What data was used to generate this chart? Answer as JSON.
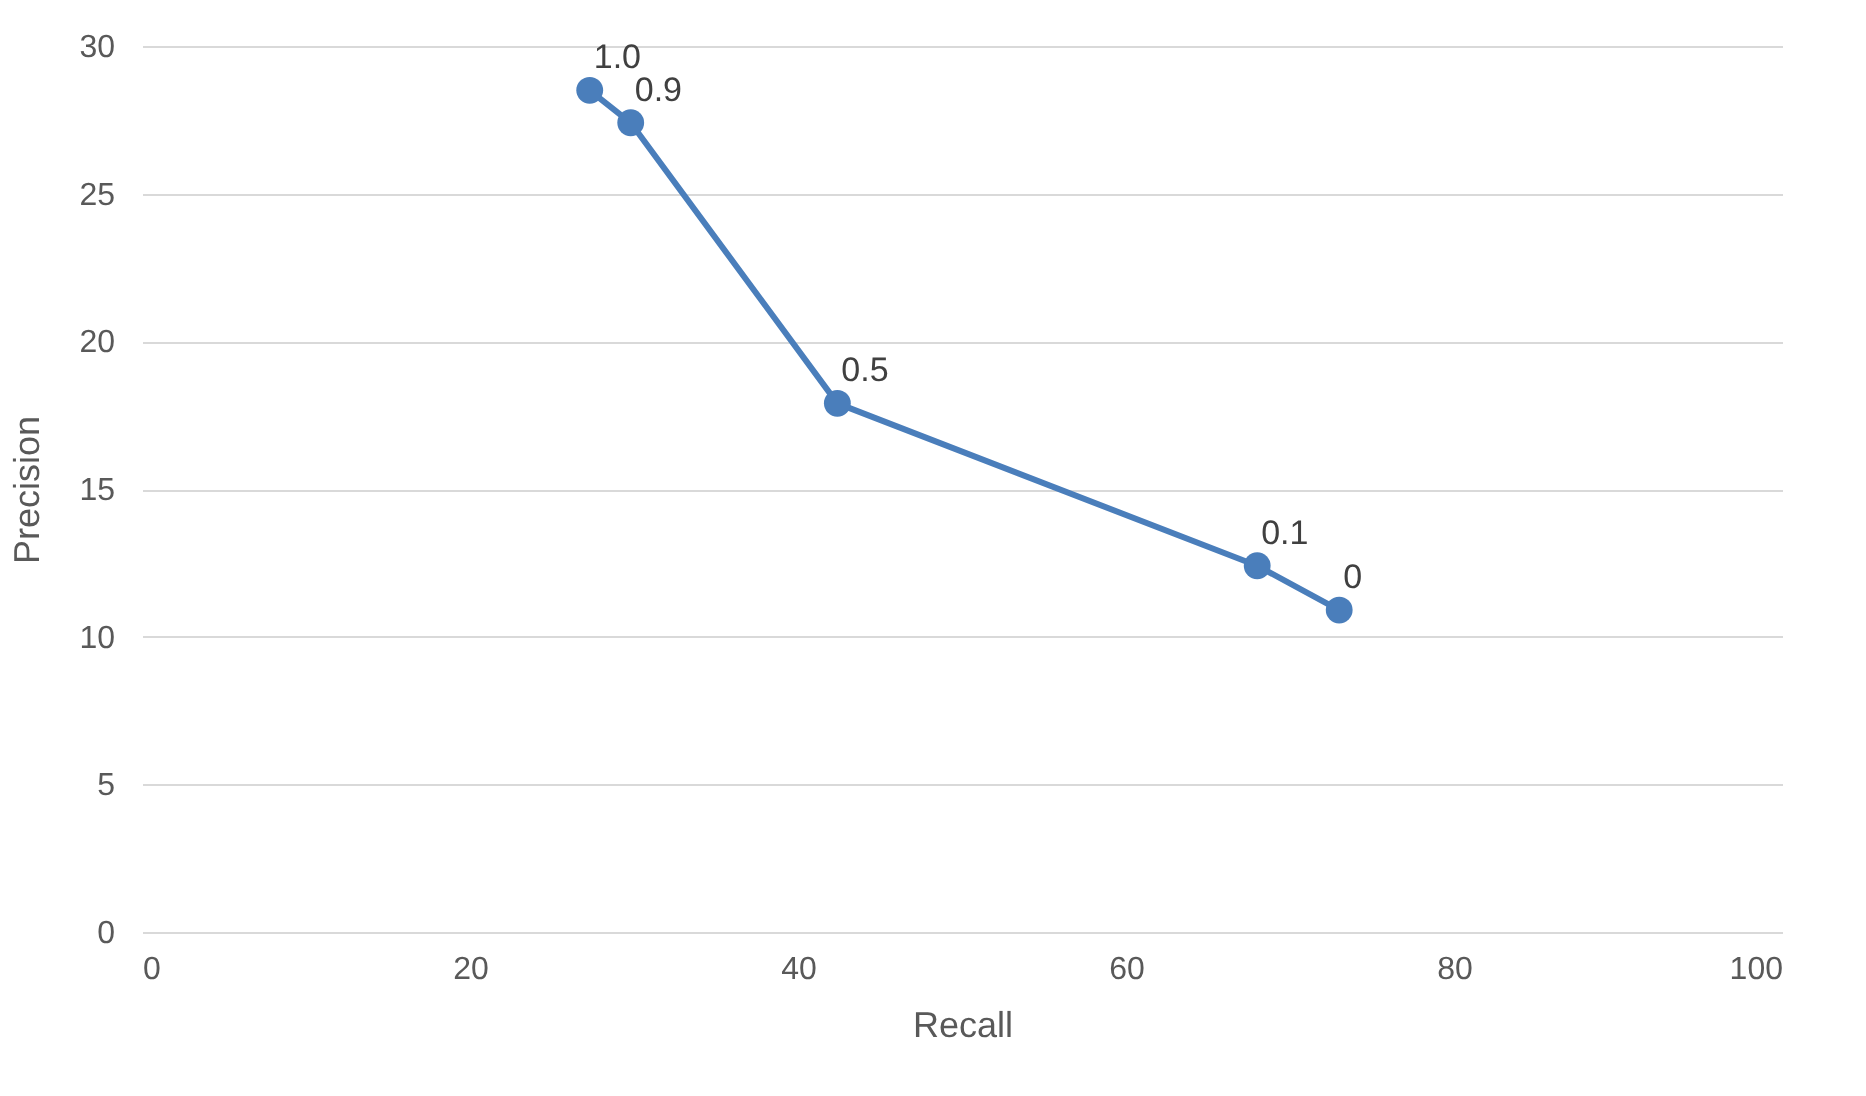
{
  "chart_data": {
    "type": "line",
    "xlabel": "Recall",
    "ylabel": "Precision",
    "x": [
      27.3,
      29.8,
      42.4,
      68.0,
      73.0
    ],
    "series": [
      {
        "color": "#4a7ebb",
        "values": [
          28.5,
          27.4,
          17.9,
          12.4,
          10.9
        ]
      }
    ],
    "xlim": [
      0,
      100
    ],
    "xticks": [
      0,
      20,
      40,
      60,
      80,
      100
    ],
    "ylim": [
      0,
      30
    ],
    "yticks": [
      0,
      5,
      10,
      15,
      20,
      25,
      30
    ],
    "grid": "y",
    "marker": "circle",
    "line_style": "solid",
    "annotations": [
      {
        "text": "1.0",
        "x": 27.3,
        "y": 28.5
      },
      {
        "text": "0.9",
        "x": 29.8,
        "y": 27.4
      },
      {
        "text": "0.5",
        "x": 42.4,
        "y": 17.9
      },
      {
        "text": "0.1",
        "x": 68.0,
        "y": 12.4
      },
      {
        "text": "0",
        "x": 73.0,
        "y": 10.9
      }
    ]
  }
}
